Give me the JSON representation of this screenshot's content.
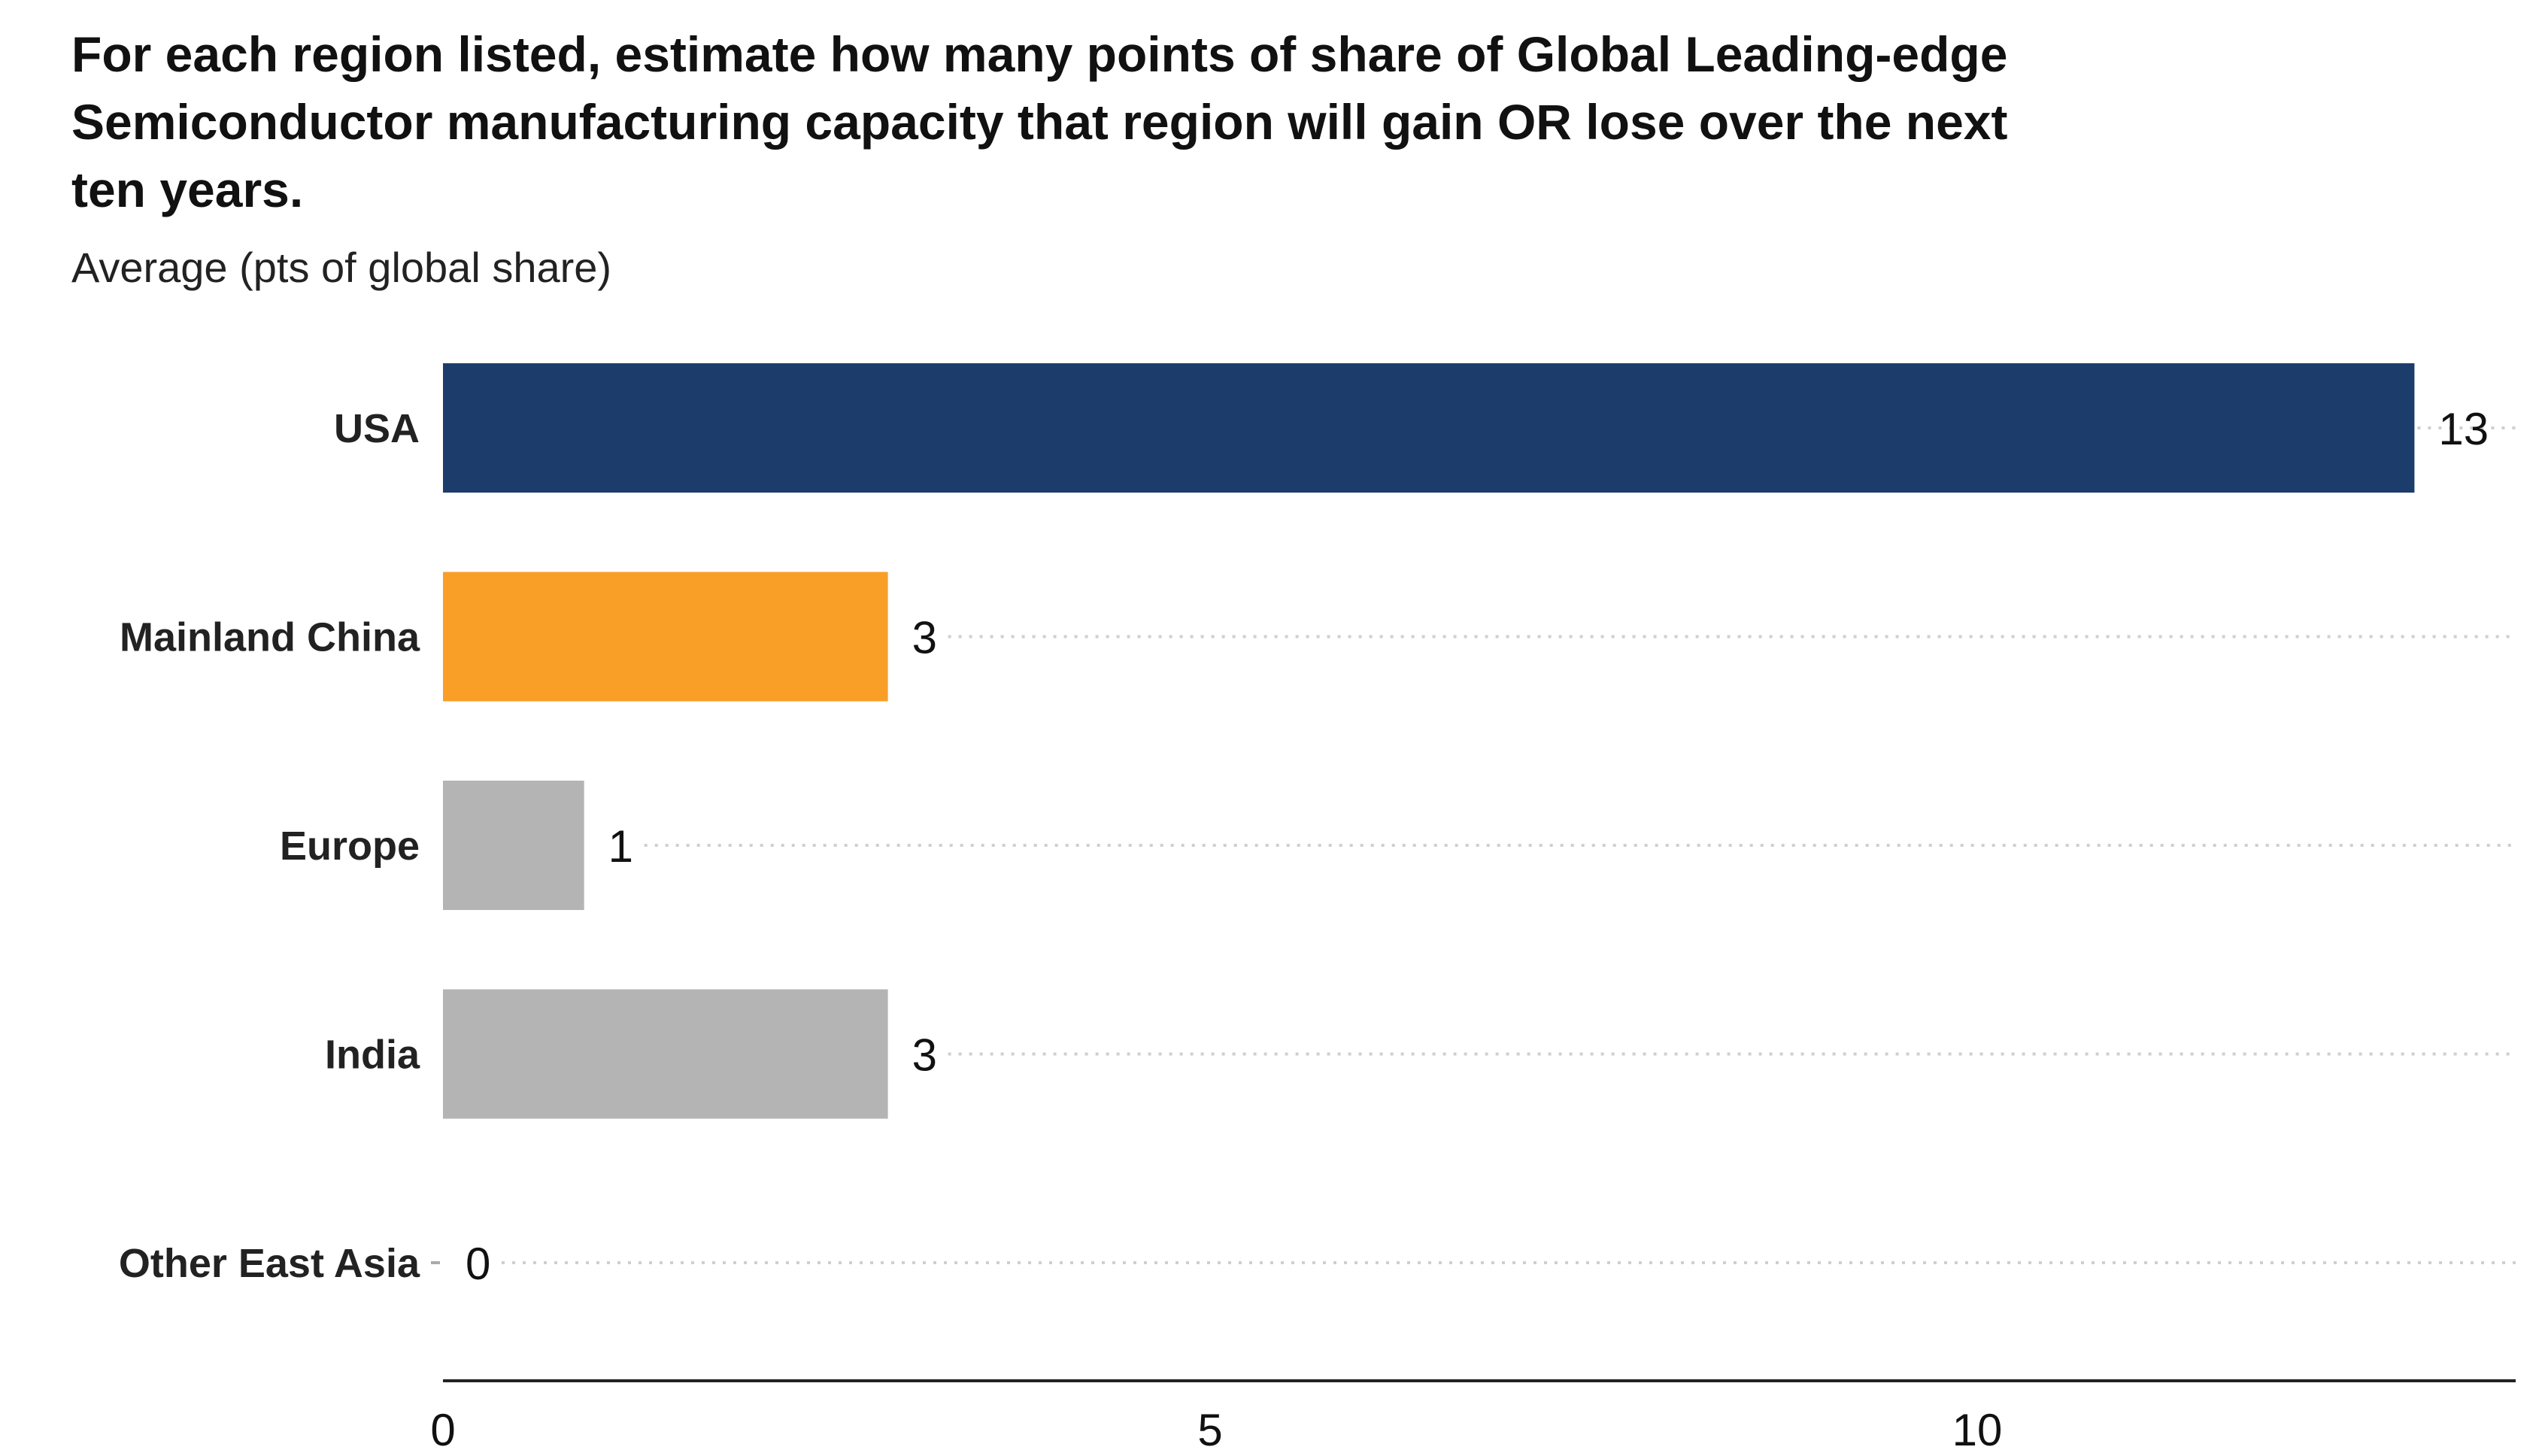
{
  "chart_data": {
    "type": "bar",
    "orientation": "horizontal",
    "title": "For each region listed, estimate how many points of share of Global Leading-edge Semiconductor manufacturing capacity that region will gain OR lose over the next ten years.",
    "title_lines": [
      "For each region listed, estimate how many points of share of Global Leading-edge",
      "Semiconductor manufacturing capacity that region will gain OR lose over the next",
      "ten years."
    ],
    "subtitle": "Average (pts of global share)",
    "xlabel": "",
    "ylabel": "",
    "categories": [
      "USA",
      "Mainland China",
      "Europe",
      "India",
      "Other East Asia"
    ],
    "values": [
      12.85,
      2.9,
      0.92,
      2.9,
      0
    ],
    "data_labels": [
      "13",
      "3",
      "1",
      "3",
      "0"
    ],
    "colors": [
      "#1c3d6b",
      "#f99e27",
      "#b3b4b3",
      "#b3b4b3",
      "#b3b4b3"
    ],
    "xlim": [
      0,
      13.5
    ],
    "xticks": [
      0,
      5,
      10
    ],
    "xtick_labels": [
      "0",
      "5",
      "10"
    ],
    "grid": "dotted horizontal guide lines per row",
    "legend": "none"
  }
}
